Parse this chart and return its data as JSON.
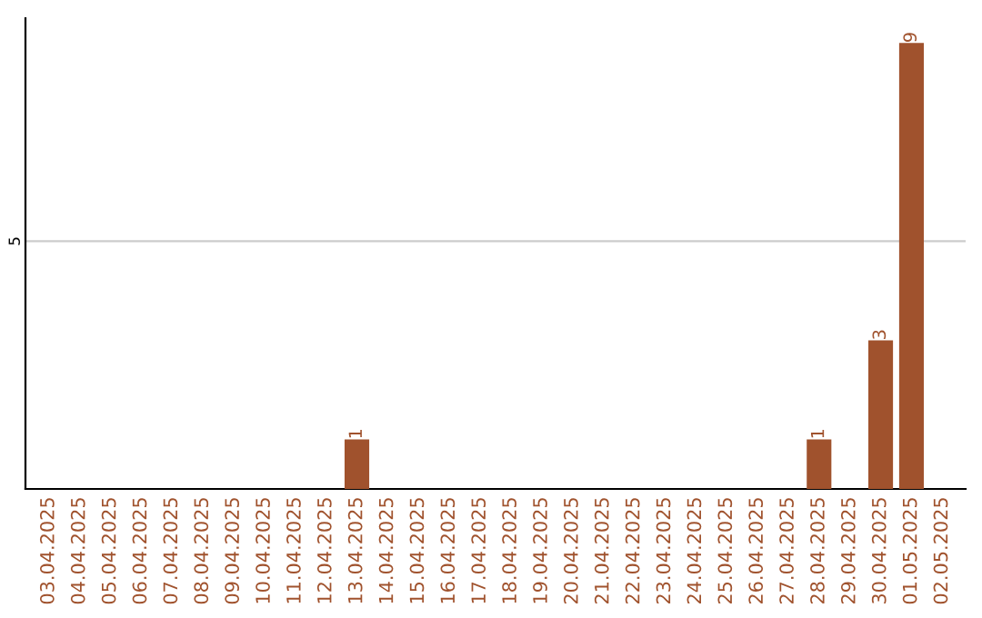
{
  "chart_data": {
    "type": "bar",
    "categories": [
      "03.04.2025",
      "04.04.2025",
      "05.04.2025",
      "06.04.2025",
      "07.04.2025",
      "08.04.2025",
      "09.04.2025",
      "10.04.2025",
      "11.04.2025",
      "12.04.2025",
      "13.04.2025",
      "14.04.2025",
      "15.04.2025",
      "16.04.2025",
      "17.04.2025",
      "18.04.2025",
      "19.04.2025",
      "20.04.2025",
      "21.04.2025",
      "22.04.2025",
      "23.04.2025",
      "24.04.2025",
      "25.04.2025",
      "26.04.2025",
      "27.04.2025",
      "28.04.2025",
      "29.04.2025",
      "30.04.2025",
      "01.05.2025",
      "02.05.2025"
    ],
    "values": [
      0,
      0,
      0,
      0,
      0,
      0,
      0,
      0,
      0,
      0,
      1,
      0,
      0,
      0,
      0,
      0,
      0,
      0,
      0,
      0,
      0,
      0,
      0,
      0,
      0,
      1,
      0,
      3,
      9,
      0
    ],
    "value_labels": [
      null,
      null,
      null,
      null,
      null,
      null,
      null,
      null,
      null,
      null,
      "1",
      null,
      null,
      null,
      null,
      null,
      null,
      null,
      null,
      null,
      null,
      null,
      null,
      null,
      null,
      "1",
      null,
      "3",
      "9",
      null
    ],
    "color": "#a0522d",
    "ylim": [
      0,
      9.5
    ],
    "yticks": [
      5
    ],
    "grid": "y"
  }
}
